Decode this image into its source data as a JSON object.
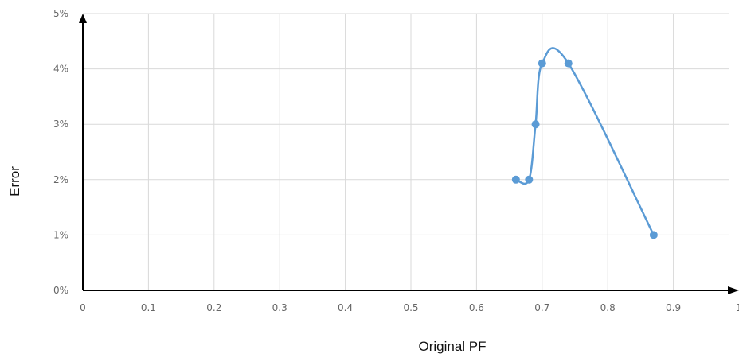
{
  "chart_data": {
    "type": "scatter",
    "xlabel": "Original PF",
    "ylabel": "Error",
    "xlim": [
      0,
      1
    ],
    "ylim": [
      0,
      5
    ],
    "x_ticks": [
      0,
      0.1,
      0.2,
      0.3,
      0.4,
      0.5,
      0.6,
      0.7,
      0.8,
      0.9,
      1
    ],
    "x_tick_labels": [
      "0",
      "0.1",
      "0.2",
      "0.3",
      "0.4",
      "0.5",
      "0.6",
      "0.7",
      "0.8",
      "0.9",
      "1"
    ],
    "y_ticks": [
      0,
      1,
      2,
      3,
      4,
      5
    ],
    "y_tick_labels": [
      "0%",
      "1%",
      "2%",
      "3%",
      "4%",
      "5%"
    ],
    "grid": true,
    "legend": "none",
    "series": [
      {
        "color": "#5b9bd5",
        "line": "smooth",
        "x": [
          0.66,
          0.68,
          0.69,
          0.7,
          0.74,
          0.87
        ],
        "y": [
          2,
          2,
          3,
          4.1,
          4.1,
          1
        ]
      }
    ]
  }
}
